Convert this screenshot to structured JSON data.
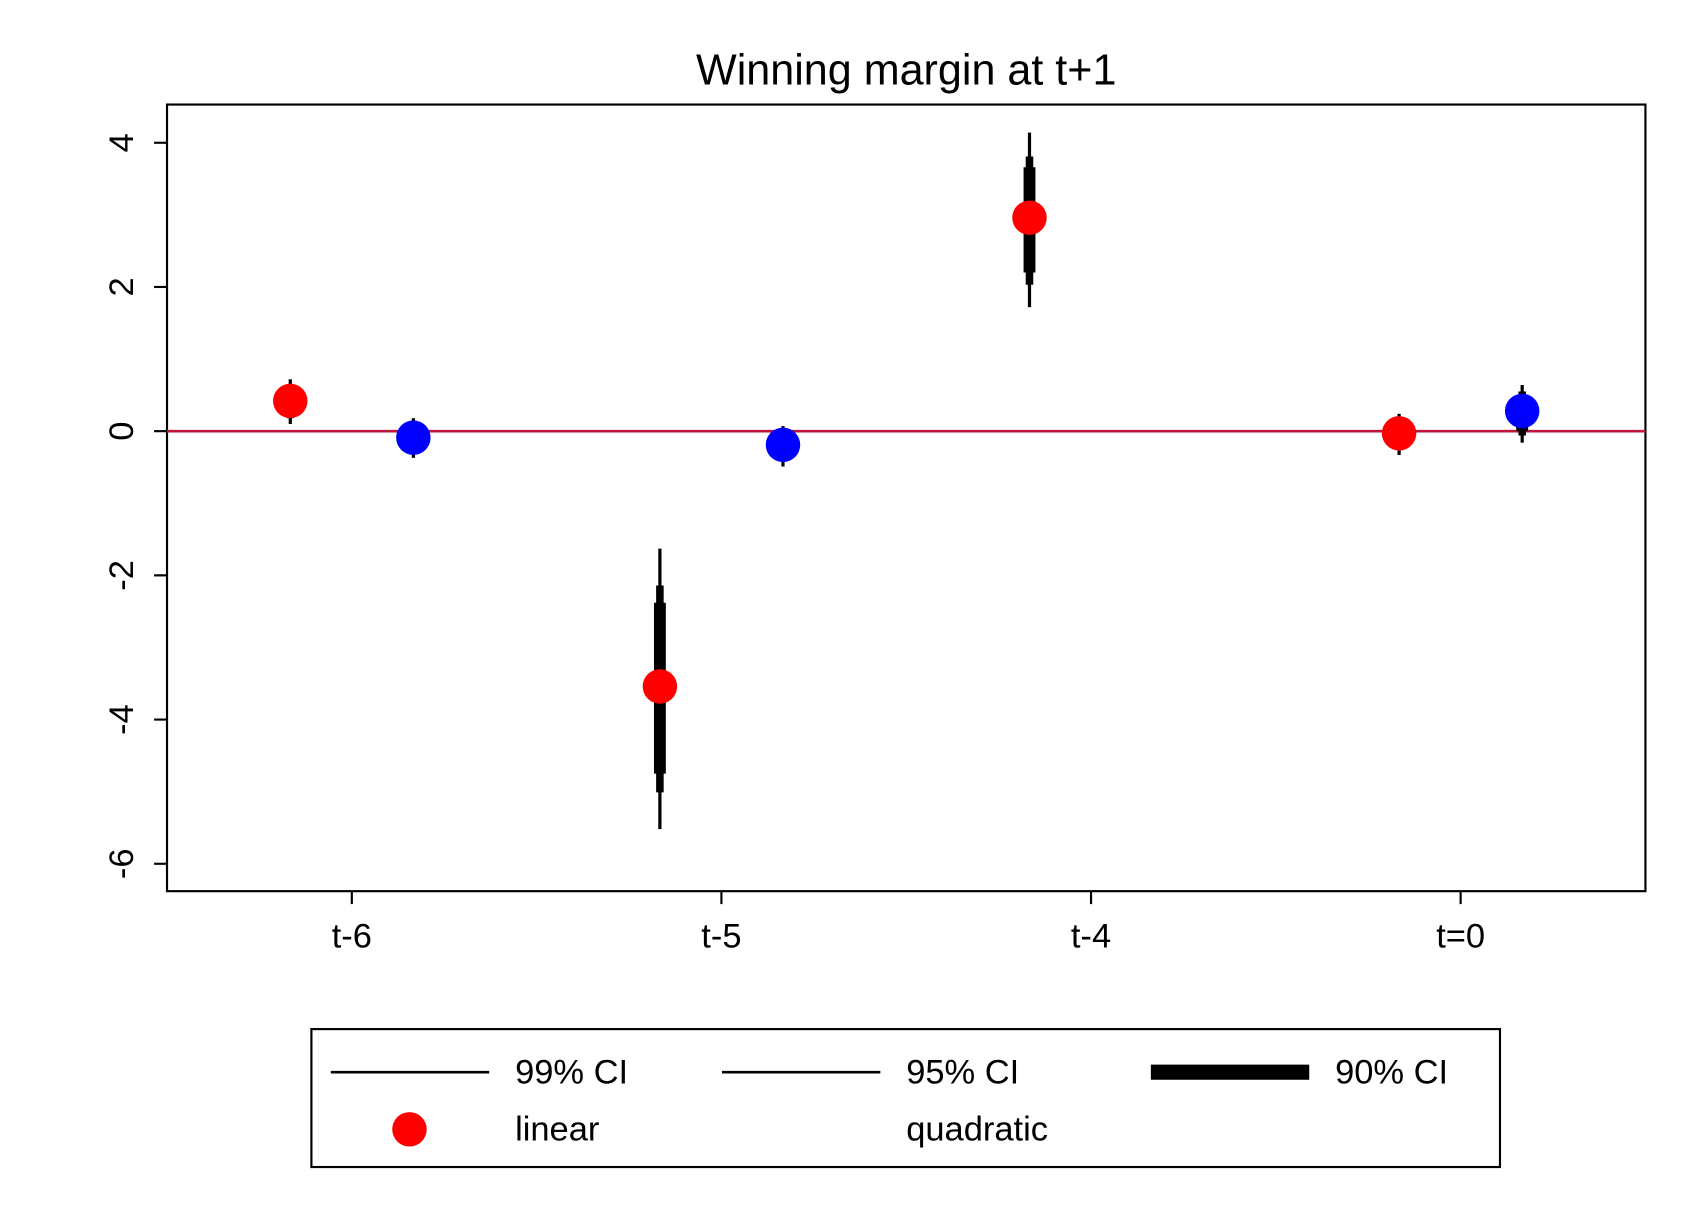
{
  "chart_data": {
    "type": "coefplot",
    "title": "Winning margin at t+1",
    "categories": [
      "t-6",
      "t-5",
      "t-4",
      "t=0"
    ],
    "ylim": [
      -6.38,
      4.53
    ],
    "yticks": [
      -6,
      -4,
      -2,
      0,
      2,
      4
    ],
    "hline": 0,
    "hline_color": "#c0143c",
    "ci_levels": [
      "99% CI",
      "95% CI",
      "90% CI"
    ],
    "ci_color": "#000000",
    "series": [
      {
        "name": "linear",
        "color": "#ff0000",
        "values": [
          0.42,
          -3.54,
          2.96,
          -0.03
        ],
        "intervals": [
          {
            "low": [
              0.1,
              -5.52,
              1.72,
              -0.33
            ],
            "high": [
              0.72,
              -1.63,
              4.14,
              0.24
            ]
          },
          {
            "low": [
              0.18,
              -5.01,
              2.03,
              -0.25
            ],
            "high": [
              0.65,
              -2.14,
              3.81,
              0.17
            ]
          },
          {
            "low": [
              0.25,
              -4.75,
              2.2,
              -0.2
            ],
            "high": [
              0.6,
              -2.38,
              3.66,
              0.12
            ]
          }
        ]
      },
      {
        "name": "quadratic",
        "color": "#0000ff",
        "values": [
          -0.09,
          -0.19,
          null,
          0.28
        ],
        "intervals": [
          {
            "low": [
              -0.37,
              -0.49,
              null,
              -0.16
            ],
            "high": [
              0.18,
              0.07,
              null,
              0.64
            ]
          },
          {
            "low": [
              -0.3,
              -0.42,
              null,
              -0.06
            ],
            "high": [
              0.12,
              0.0,
              null,
              0.55
            ]
          },
          {
            "low": [
              -0.26,
              -0.36,
              null,
              0.0
            ],
            "high": [
              0.08,
              -0.04,
              null,
              0.5
            ]
          }
        ]
      }
    ]
  }
}
